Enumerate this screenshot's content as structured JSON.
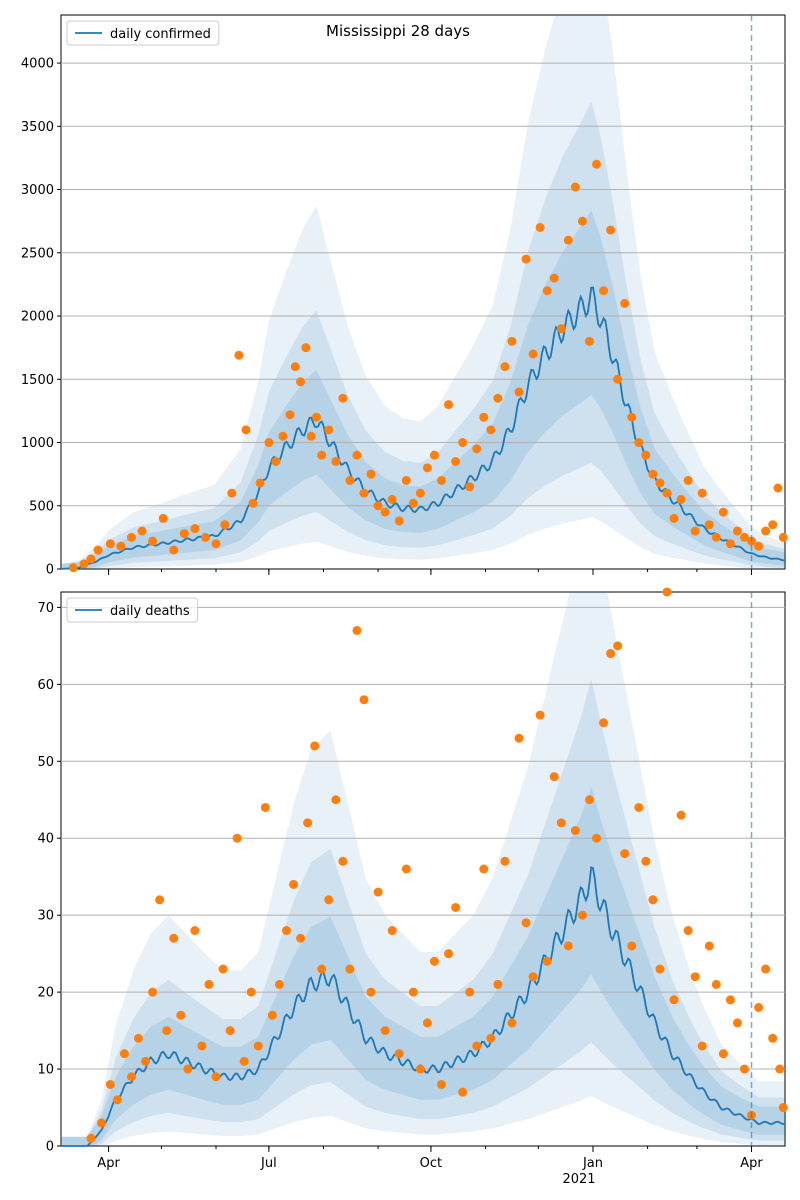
{
  "chart_data": [
    {
      "type": "line",
      "title": "Mississippi 28 days",
      "legend": "daily confirmed",
      "legend_position": "top-left",
      "grid": true,
      "ylim": [
        0,
        4380
      ],
      "yticks": [
        0,
        500,
        1000,
        1500,
        2000,
        2500,
        3000,
        3500,
        4000
      ],
      "xticks": [
        "Apr",
        "Jul",
        "Oct",
        "Jan",
        "Apr"
      ],
      "xtick_dates": [
        "2020-04-01",
        "2020-07-01",
        "2020-10-01",
        "2021-01-01",
        "2021-04-01"
      ],
      "xyear_label": "2021",
      "xlim": [
        "2020-03-05",
        "2021-04-20"
      ],
      "forecast_start": "2021-04-01",
      "series_color": "#1f77b4",
      "points_color": "#ff7f0e",
      "band_color": "#1f77b4",
      "line": [
        [
          "2020-03-05",
          0
        ],
        [
          "2020-03-15",
          10
        ],
        [
          "2020-03-25",
          60
        ],
        [
          "2020-04-01",
          110
        ],
        [
          "2020-04-15",
          170
        ],
        [
          "2020-05-01",
          200
        ],
        [
          "2020-05-15",
          230
        ],
        [
          "2020-05-31",
          260
        ],
        [
          "2020-06-15",
          380
        ],
        [
          "2020-06-25",
          600
        ],
        [
          "2020-07-01",
          800
        ],
        [
          "2020-07-10",
          950
        ],
        [
          "2020-07-20",
          1100
        ],
        [
          "2020-07-28",
          1180
        ],
        [
          "2020-08-05",
          1000
        ],
        [
          "2020-08-15",
          780
        ],
        [
          "2020-08-25",
          620
        ],
        [
          "2020-09-05",
          520
        ],
        [
          "2020-09-15",
          480
        ],
        [
          "2020-09-25",
          470
        ],
        [
          "2020-10-05",
          520
        ],
        [
          "2020-10-15",
          620
        ],
        [
          "2020-10-25",
          720
        ],
        [
          "2020-11-05",
          850
        ],
        [
          "2020-11-15",
          1100
        ],
        [
          "2020-11-25",
          1450
        ],
        [
          "2020-12-05",
          1700
        ],
        [
          "2020-12-15",
          1900
        ],
        [
          "2020-12-25",
          2050
        ],
        [
          "2020-12-31",
          2150
        ],
        [
          "2021-01-05",
          2000
        ],
        [
          "2021-01-12",
          1700
        ],
        [
          "2021-01-20",
          1300
        ],
        [
          "2021-01-28",
          950
        ],
        [
          "2021-02-05",
          700
        ],
        [
          "2021-02-15",
          550
        ],
        [
          "2021-02-25",
          420
        ],
        [
          "2021-03-05",
          320
        ],
        [
          "2021-03-15",
          240
        ],
        [
          "2021-03-25",
          170
        ],
        [
          "2021-04-01",
          120
        ],
        [
          "2021-04-10",
          90
        ],
        [
          "2021-04-20",
          70
        ]
      ],
      "points": [
        [
          "2020-03-12",
          10
        ],
        [
          "2020-03-18",
          40
        ],
        [
          "2020-03-22",
          80
        ],
        [
          "2020-03-26",
          150
        ],
        [
          "2020-04-02",
          200
        ],
        [
          "2020-04-08",
          180
        ],
        [
          "2020-04-14",
          250
        ],
        [
          "2020-04-20",
          300
        ],
        [
          "2020-04-26",
          220
        ],
        [
          "2020-05-02",
          400
        ],
        [
          "2020-05-08",
          150
        ],
        [
          "2020-05-14",
          280
        ],
        [
          "2020-05-20",
          320
        ],
        [
          "2020-05-26",
          250
        ],
        [
          "2020-06-01",
          200
        ],
        [
          "2020-06-06",
          350
        ],
        [
          "2020-06-10",
          600
        ],
        [
          "2020-06-14",
          1690
        ],
        [
          "2020-06-18",
          1100
        ],
        [
          "2020-06-22",
          520
        ],
        [
          "2020-06-26",
          680
        ],
        [
          "2020-07-01",
          1000
        ],
        [
          "2020-07-05",
          850
        ],
        [
          "2020-07-09",
          1050
        ],
        [
          "2020-07-13",
          1220
        ],
        [
          "2020-07-16",
          1600
        ],
        [
          "2020-07-19",
          1480
        ],
        [
          "2020-07-22",
          1750
        ],
        [
          "2020-07-25",
          1050
        ],
        [
          "2020-07-28",
          1200
        ],
        [
          "2020-07-31",
          900
        ],
        [
          "2020-08-04",
          1100
        ],
        [
          "2020-08-08",
          850
        ],
        [
          "2020-08-12",
          1350
        ],
        [
          "2020-08-16",
          700
        ],
        [
          "2020-08-20",
          900
        ],
        [
          "2020-08-24",
          600
        ],
        [
          "2020-08-28",
          750
        ],
        [
          "2020-09-01",
          500
        ],
        [
          "2020-09-05",
          450
        ],
        [
          "2020-09-09",
          550
        ],
        [
          "2020-09-13",
          380
        ],
        [
          "2020-09-17",
          700
        ],
        [
          "2020-09-21",
          520
        ],
        [
          "2020-09-25",
          600
        ],
        [
          "2020-09-29",
          800
        ],
        [
          "2020-10-03",
          900
        ],
        [
          "2020-10-07",
          700
        ],
        [
          "2020-10-11",
          1300
        ],
        [
          "2020-10-15",
          850
        ],
        [
          "2020-10-19",
          1000
        ],
        [
          "2020-10-23",
          650
        ],
        [
          "2020-10-27",
          950
        ],
        [
          "2020-10-31",
          1200
        ],
        [
          "2020-11-04",
          1100
        ],
        [
          "2020-11-08",
          1350
        ],
        [
          "2020-11-12",
          1600
        ],
        [
          "2020-11-16",
          1800
        ],
        [
          "2020-11-20",
          1400
        ],
        [
          "2020-11-24",
          2450
        ],
        [
          "2020-11-28",
          1700
        ],
        [
          "2020-12-02",
          2700
        ],
        [
          "2020-12-06",
          2200
        ],
        [
          "2020-12-10",
          2300
        ],
        [
          "2020-12-14",
          1900
        ],
        [
          "2020-12-18",
          2600
        ],
        [
          "2020-12-22",
          3020
        ],
        [
          "2020-12-26",
          2750
        ],
        [
          "2020-12-30",
          1800
        ],
        [
          "2021-01-03",
          3200
        ],
        [
          "2021-01-07",
          2200
        ],
        [
          "2021-01-11",
          2680
        ],
        [
          "2021-01-15",
          1500
        ],
        [
          "2021-01-19",
          2100
        ],
        [
          "2021-01-23",
          1200
        ],
        [
          "2021-01-27",
          1000
        ],
        [
          "2021-01-31",
          900
        ],
        [
          "2021-02-04",
          750
        ],
        [
          "2021-02-08",
          680
        ],
        [
          "2021-02-12",
          600
        ],
        [
          "2021-02-16",
          400
        ],
        [
          "2021-02-20",
          550
        ],
        [
          "2021-02-24",
          700
        ],
        [
          "2021-02-28",
          300
        ],
        [
          "2021-03-04",
          600
        ],
        [
          "2021-03-08",
          350
        ],
        [
          "2021-03-12",
          250
        ],
        [
          "2021-03-16",
          450
        ],
        [
          "2021-03-20",
          200
        ],
        [
          "2021-03-24",
          300
        ],
        [
          "2021-03-28",
          250
        ],
        [
          "2021-04-01",
          220
        ],
        [
          "2021-04-05",
          180
        ],
        [
          "2021-04-09",
          300
        ],
        [
          "2021-04-13",
          350
        ],
        [
          "2021-04-16",
          640
        ],
        [
          "2021-04-19",
          250
        ]
      ]
    },
    {
      "type": "line",
      "legend": "daily deaths",
      "legend_position": "top-left",
      "grid": true,
      "ylim": [
        0,
        72
      ],
      "yticks": [
        0,
        10,
        20,
        30,
        40,
        50,
        60,
        70
      ],
      "xticks": [
        "Apr",
        "Jul",
        "Oct",
        "Jan",
        "Apr"
      ],
      "xtick_dates": [
        "2020-04-01",
        "2020-07-01",
        "2020-10-01",
        "2021-01-01",
        "2021-04-01"
      ],
      "xyear_label": "2021",
      "xlim": [
        "2020-03-05",
        "2021-04-20"
      ],
      "forecast_start": "2021-04-01",
      "series_color": "#1f77b4",
      "points_color": "#ff7f0e",
      "band_color": "#1f77b4",
      "line": [
        [
          "2020-03-05",
          0
        ],
        [
          "2020-03-20",
          0
        ],
        [
          "2020-03-28",
          2
        ],
        [
          "2020-04-05",
          6
        ],
        [
          "2020-04-15",
          9
        ],
        [
          "2020-04-25",
          11
        ],
        [
          "2020-05-05",
          12
        ],
        [
          "2020-05-15",
          11
        ],
        [
          "2020-05-25",
          10
        ],
        [
          "2020-06-05",
          9
        ],
        [
          "2020-06-15",
          9
        ],
        [
          "2020-06-25",
          10
        ],
        [
          "2020-07-05",
          14
        ],
        [
          "2020-07-15",
          18
        ],
        [
          "2020-07-25",
          21
        ],
        [
          "2020-08-05",
          22
        ],
        [
          "2020-08-15",
          18
        ],
        [
          "2020-08-25",
          14
        ],
        [
          "2020-09-05",
          12
        ],
        [
          "2020-09-15",
          11
        ],
        [
          "2020-09-25",
          10
        ],
        [
          "2020-10-05",
          10
        ],
        [
          "2020-10-15",
          11
        ],
        [
          "2020-10-25",
          12
        ],
        [
          "2020-11-05",
          14
        ],
        [
          "2020-11-15",
          17
        ],
        [
          "2020-11-25",
          20
        ],
        [
          "2020-12-05",
          24
        ],
        [
          "2020-12-15",
          28
        ],
        [
          "2020-12-25",
          32
        ],
        [
          "2020-12-31",
          35
        ],
        [
          "2021-01-05",
          32
        ],
        [
          "2021-01-12",
          28
        ],
        [
          "2021-01-20",
          24
        ],
        [
          "2021-01-28",
          20
        ],
        [
          "2021-02-05",
          16
        ],
        [
          "2021-02-15",
          12
        ],
        [
          "2021-02-25",
          9
        ],
        [
          "2021-03-05",
          7
        ],
        [
          "2021-03-15",
          5
        ],
        [
          "2021-03-25",
          4
        ],
        [
          "2021-04-05",
          3
        ],
        [
          "2021-04-20",
          3
        ]
      ],
      "points": [
        [
          "2020-03-22",
          1
        ],
        [
          "2020-03-28",
          3
        ],
        [
          "2020-04-02",
          8
        ],
        [
          "2020-04-06",
          6
        ],
        [
          "2020-04-10",
          12
        ],
        [
          "2020-04-14",
          9
        ],
        [
          "2020-04-18",
          14
        ],
        [
          "2020-04-22",
          11
        ],
        [
          "2020-04-26",
          20
        ],
        [
          "2020-04-30",
          32
        ],
        [
          "2020-05-04",
          15
        ],
        [
          "2020-05-08",
          27
        ],
        [
          "2020-05-12",
          17
        ],
        [
          "2020-05-16",
          10
        ],
        [
          "2020-05-20",
          28
        ],
        [
          "2020-05-24",
          13
        ],
        [
          "2020-05-28",
          21
        ],
        [
          "2020-06-01",
          9
        ],
        [
          "2020-06-05",
          23
        ],
        [
          "2020-06-09",
          15
        ],
        [
          "2020-06-13",
          40
        ],
        [
          "2020-06-17",
          11
        ],
        [
          "2020-06-21",
          20
        ],
        [
          "2020-06-25",
          13
        ],
        [
          "2020-06-29",
          44
        ],
        [
          "2020-07-03",
          17
        ],
        [
          "2020-07-07",
          21
        ],
        [
          "2020-07-11",
          28
        ],
        [
          "2020-07-15",
          34
        ],
        [
          "2020-07-19",
          27
        ],
        [
          "2020-07-23",
          42
        ],
        [
          "2020-07-27",
          52
        ],
        [
          "2020-07-31",
          23
        ],
        [
          "2020-08-04",
          32
        ],
        [
          "2020-08-08",
          45
        ],
        [
          "2020-08-12",
          37
        ],
        [
          "2020-08-16",
          23
        ],
        [
          "2020-08-20",
          67
        ],
        [
          "2020-08-24",
          58
        ],
        [
          "2020-08-28",
          20
        ],
        [
          "2020-09-01",
          33
        ],
        [
          "2020-09-05",
          15
        ],
        [
          "2020-09-09",
          28
        ],
        [
          "2020-09-13",
          12
        ],
        [
          "2020-09-17",
          36
        ],
        [
          "2020-09-21",
          20
        ],
        [
          "2020-09-25",
          10
        ],
        [
          "2020-09-29",
          16
        ],
        [
          "2020-10-03",
          24
        ],
        [
          "2020-10-07",
          8
        ],
        [
          "2020-10-11",
          25
        ],
        [
          "2020-10-15",
          31
        ],
        [
          "2020-10-19",
          7
        ],
        [
          "2020-10-23",
          20
        ],
        [
          "2020-10-27",
          13
        ],
        [
          "2020-10-31",
          36
        ],
        [
          "2020-11-04",
          14
        ],
        [
          "2020-11-08",
          21
        ],
        [
          "2020-11-12",
          37
        ],
        [
          "2020-11-16",
          16
        ],
        [
          "2020-11-20",
          53
        ],
        [
          "2020-11-24",
          29
        ],
        [
          "2020-11-28",
          22
        ],
        [
          "2020-12-02",
          56
        ],
        [
          "2020-12-06",
          24
        ],
        [
          "2020-12-10",
          48
        ],
        [
          "2020-12-14",
          42
        ],
        [
          "2020-12-18",
          26
        ],
        [
          "2020-12-22",
          41
        ],
        [
          "2020-12-26",
          30
        ],
        [
          "2020-12-30",
          45
        ],
        [
          "2021-01-03",
          40
        ],
        [
          "2021-01-07",
          55
        ],
        [
          "2021-01-11",
          64
        ],
        [
          "2021-01-15",
          65
        ],
        [
          "2021-01-19",
          38
        ],
        [
          "2021-01-23",
          26
        ],
        [
          "2021-01-27",
          44
        ],
        [
          "2021-01-31",
          37
        ],
        [
          "2021-02-04",
          32
        ],
        [
          "2021-02-08",
          23
        ],
        [
          "2021-02-12",
          72
        ],
        [
          "2021-02-16",
          19
        ],
        [
          "2021-02-20",
          43
        ],
        [
          "2021-02-24",
          28
        ],
        [
          "2021-02-28",
          22
        ],
        [
          "2021-03-04",
          13
        ],
        [
          "2021-03-08",
          26
        ],
        [
          "2021-03-12",
          21
        ],
        [
          "2021-03-16",
          12
        ],
        [
          "2021-03-20",
          19
        ],
        [
          "2021-03-24",
          16
        ],
        [
          "2021-03-28",
          10
        ],
        [
          "2021-04-01",
          4
        ],
        [
          "2021-04-05",
          18
        ],
        [
          "2021-04-09",
          23
        ],
        [
          "2021-04-13",
          14
        ],
        [
          "2021-04-17",
          10
        ],
        [
          "2021-04-19",
          5
        ]
      ]
    }
  ]
}
